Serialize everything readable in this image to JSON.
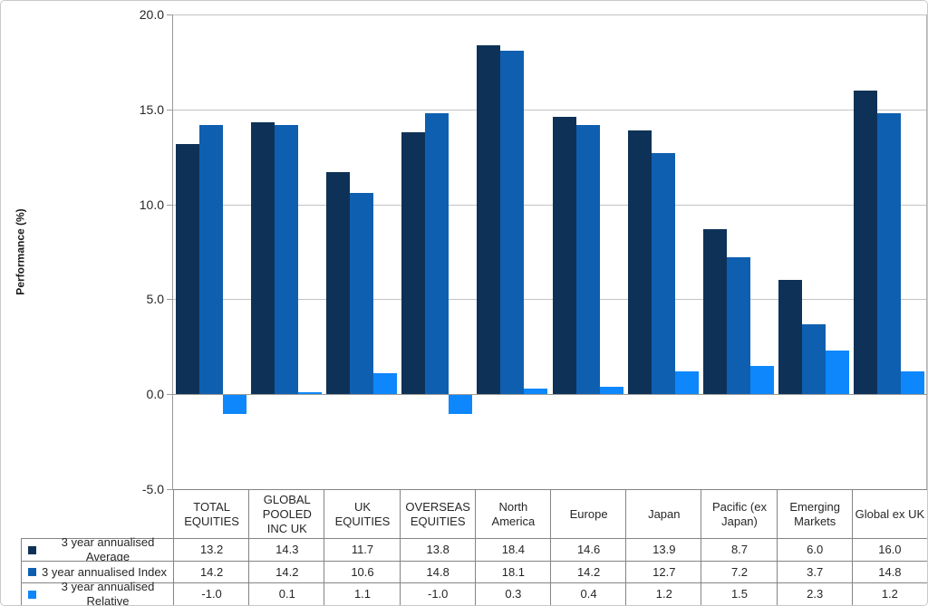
{
  "chart_data": {
    "type": "bar",
    "title": "",
    "xlabel": "",
    "ylabel": "Performance (%)",
    "ylim": [
      -5.0,
      20.0
    ],
    "ytick_step": 5.0,
    "yticks": [
      "20.0",
      "15.0",
      "10.0",
      "5.0",
      "0.0",
      "-5.0"
    ],
    "grid": true,
    "legend_position": "bottom-left-data-table",
    "categories": [
      "TOTAL EQUITIES",
      "GLOBAL POOLED INC UK",
      "UK EQUITIES",
      "OVERSEAS EQUITIES",
      "North America",
      "Europe",
      "Japan",
      "Pacific (ex Japan)",
      "Emerging Markets",
      "Global ex UK"
    ],
    "series": [
      {
        "name": "3 year annualised Average",
        "color": "#0E3257",
        "values": [
          13.2,
          14.3,
          11.7,
          13.8,
          18.4,
          14.6,
          13.9,
          8.7,
          6.0,
          16.0
        ]
      },
      {
        "name": "3 year annualised Index",
        "color": "#0F5FB0",
        "values": [
          14.2,
          14.2,
          10.6,
          14.8,
          18.1,
          14.2,
          12.7,
          7.2,
          3.7,
          14.8
        ]
      },
      {
        "name": "3 year annualised Relative",
        "color": "#0D87FB",
        "values": [
          -1.0,
          0.1,
          1.1,
          -1.0,
          0.3,
          0.4,
          1.2,
          1.5,
          2.3,
          1.2
        ]
      }
    ]
  },
  "colors": {
    "gridline": "#c3c3c3",
    "axis_line": "#9a9a9a",
    "table_border": "#848484",
    "frame_border": "#c9c9c9",
    "text": "#262626",
    "background": "#ffffff"
  }
}
